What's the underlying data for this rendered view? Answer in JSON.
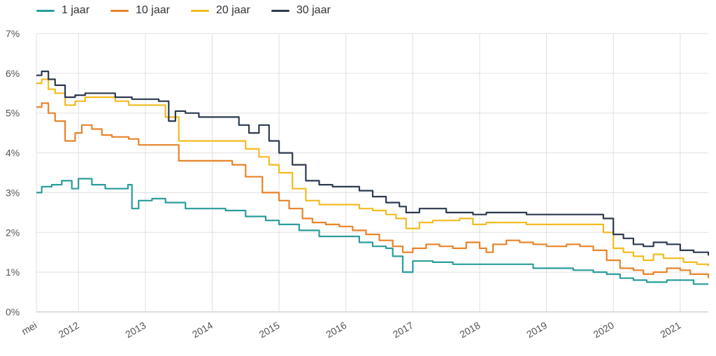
{
  "chart_data": {
    "type": "line",
    "y_ticks": [
      "0%",
      "1%",
      "2%",
      "3%",
      "4%",
      "5%",
      "6%",
      "7%"
    ],
    "ylim": [
      0,
      7
    ],
    "x_ticks": [
      "mei",
      "2012",
      "2013",
      "2014",
      "2015",
      "2016",
      "2017",
      "2018",
      "2019",
      "2020",
      "2021"
    ],
    "xlim": [
      2011.37,
      2021.42
    ],
    "grid": true,
    "legend_position": "top-left",
    "series": [
      {
        "name": "1 jaar",
        "color": "#2a9d9a",
        "x": [
          2011.37,
          2011.45,
          2011.6,
          2011.75,
          2011.9,
          2012.0,
          2012.2,
          2012.4,
          2012.74,
          2012.8,
          2012.9,
          2013.1,
          2013.3,
          2013.6,
          2013.9,
          2014.2,
          2014.5,
          2014.8,
          2015.0,
          2015.3,
          2015.6,
          2015.9,
          2016.2,
          2016.4,
          2016.6,
          2016.7,
          2016.85,
          2017.0,
          2017.3,
          2017.6,
          2017.9,
          2018.2,
          2018.5,
          2018.8,
          2019.1,
          2019.4,
          2019.7,
          2019.9,
          2020.1,
          2020.3,
          2020.5,
          2020.8,
          2021.0,
          2021.2,
          2021.42
        ],
        "values": [
          3.0,
          3.15,
          3.2,
          3.3,
          3.1,
          3.35,
          3.2,
          3.1,
          3.2,
          2.6,
          2.8,
          2.85,
          2.75,
          2.6,
          2.6,
          2.55,
          2.4,
          2.3,
          2.2,
          2.05,
          1.9,
          1.9,
          1.75,
          1.65,
          1.6,
          1.4,
          1.0,
          1.28,
          1.25,
          1.2,
          1.2,
          1.2,
          1.2,
          1.1,
          1.1,
          1.05,
          1.0,
          0.95,
          0.85,
          0.8,
          0.75,
          0.8,
          0.8,
          0.7,
          0.7
        ]
      },
      {
        "name": "10 jaar",
        "color": "#e8832a",
        "x": [
          2011.37,
          2011.45,
          2011.55,
          2011.65,
          2011.8,
          2011.95,
          2012.05,
          2012.2,
          2012.35,
          2012.5,
          2012.75,
          2012.9,
          2013.1,
          2013.35,
          2013.5,
          2013.8,
          2014.1,
          2014.3,
          2014.5,
          2014.75,
          2015.0,
          2015.15,
          2015.35,
          2015.5,
          2015.7,
          2015.9,
          2016.1,
          2016.3,
          2016.5,
          2016.7,
          2016.85,
          2017.0,
          2017.2,
          2017.4,
          2017.6,
          2017.8,
          2018.0,
          2018.1,
          2018.2,
          2018.4,
          2018.6,
          2018.8,
          2019.0,
          2019.3,
          2019.5,
          2019.7,
          2019.9,
          2020.1,
          2020.3,
          2020.45,
          2020.6,
          2020.8,
          2021.0,
          2021.15,
          2021.42
        ],
        "values": [
          5.15,
          5.25,
          5.0,
          4.8,
          4.3,
          4.5,
          4.7,
          4.6,
          4.45,
          4.4,
          4.35,
          4.2,
          4.2,
          4.2,
          3.8,
          3.8,
          3.8,
          3.7,
          3.4,
          3.0,
          2.8,
          2.6,
          2.35,
          2.25,
          2.2,
          2.15,
          2.05,
          1.95,
          1.8,
          1.65,
          1.5,
          1.6,
          1.7,
          1.65,
          1.6,
          1.75,
          1.6,
          1.5,
          1.7,
          1.8,
          1.75,
          1.7,
          1.65,
          1.7,
          1.65,
          1.55,
          1.3,
          1.1,
          1.05,
          0.95,
          1.0,
          1.1,
          1.05,
          0.95,
          0.85
        ]
      },
      {
        "name": "20 jaar",
        "color": "#f2bb20",
        "x": [
          2011.37,
          2011.45,
          2011.55,
          2011.65,
          2011.8,
          2011.95,
          2012.1,
          2012.3,
          2012.55,
          2012.75,
          2012.9,
          2013.1,
          2013.3,
          2013.5,
          2013.8,
          2014.1,
          2014.3,
          2014.5,
          2014.7,
          2014.85,
          2015.0,
          2015.2,
          2015.4,
          2015.6,
          2015.8,
          2016.0,
          2016.2,
          2016.4,
          2016.6,
          2016.75,
          2016.9,
          2017.1,
          2017.3,
          2017.5,
          2017.7,
          2017.9,
          2018.1,
          2018.4,
          2018.7,
          2019.0,
          2019.3,
          2019.5,
          2019.7,
          2019.85,
          2020.0,
          2020.15,
          2020.3,
          2020.45,
          2020.6,
          2020.75,
          2020.9,
          2021.05,
          2021.25,
          2021.42
        ],
        "values": [
          5.75,
          5.85,
          5.6,
          5.5,
          5.2,
          5.3,
          5.4,
          5.4,
          5.3,
          5.2,
          5.2,
          5.2,
          4.9,
          4.3,
          4.3,
          4.3,
          4.3,
          4.1,
          3.9,
          3.7,
          3.5,
          3.1,
          2.8,
          2.7,
          2.7,
          2.7,
          2.6,
          2.55,
          2.45,
          2.35,
          2.1,
          2.25,
          2.3,
          2.3,
          2.35,
          2.2,
          2.25,
          2.25,
          2.2,
          2.2,
          2.2,
          2.2,
          2.2,
          2.0,
          1.6,
          1.5,
          1.4,
          1.3,
          1.45,
          1.35,
          1.35,
          1.25,
          1.2,
          1.15
        ]
      },
      {
        "name": "30 jaar",
        "color": "#2d3a4f",
        "x": [
          2011.37,
          2011.45,
          2011.55,
          2011.65,
          2011.8,
          2011.95,
          2012.1,
          2012.3,
          2012.55,
          2012.8,
          2013.0,
          2013.2,
          2013.35,
          2013.45,
          2013.6,
          2013.8,
          2014.1,
          2014.3,
          2014.4,
          2014.55,
          2014.7,
          2014.85,
          2015.0,
          2015.2,
          2015.4,
          2015.6,
          2015.8,
          2016.0,
          2016.2,
          2016.4,
          2016.6,
          2016.8,
          2016.9,
          2017.1,
          2017.3,
          2017.5,
          2017.7,
          2017.9,
          2018.1,
          2018.3,
          2018.5,
          2018.7,
          2019.0,
          2019.3,
          2019.5,
          2019.7,
          2019.85,
          2020.0,
          2020.15,
          2020.3,
          2020.45,
          2020.6,
          2020.8,
          2021.0,
          2021.2,
          2021.42
        ],
        "values": [
          5.95,
          6.05,
          5.85,
          5.7,
          5.4,
          5.45,
          5.5,
          5.5,
          5.4,
          5.35,
          5.35,
          5.3,
          4.8,
          5.05,
          5.0,
          4.9,
          4.9,
          4.9,
          4.7,
          4.5,
          4.7,
          4.3,
          4.0,
          3.7,
          3.3,
          3.2,
          3.15,
          3.15,
          3.05,
          2.9,
          2.75,
          2.65,
          2.5,
          2.6,
          2.6,
          2.5,
          2.5,
          2.45,
          2.5,
          2.5,
          2.5,
          2.45,
          2.45,
          2.45,
          2.45,
          2.45,
          2.35,
          1.95,
          1.85,
          1.7,
          1.65,
          1.75,
          1.7,
          1.55,
          1.5,
          1.42
        ]
      }
    ]
  }
}
